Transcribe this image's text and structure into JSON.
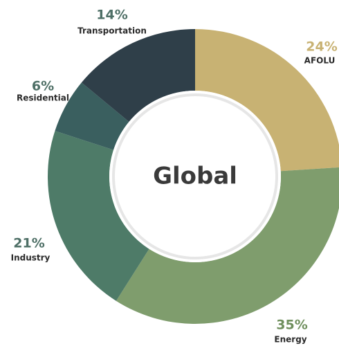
{
  "chart_data": {
    "type": "donut",
    "center_label": "Global",
    "categories": [
      "AFOLU",
      "Energy",
      "Industry",
      "Residential",
      "Transportation"
    ],
    "values": [
      24,
      35,
      21,
      6,
      14
    ],
    "value_labels": [
      "24%",
      "35%",
      "21%",
      "6%",
      "14%"
    ],
    "colors": [
      "#c8b273",
      "#7f9d6d",
      "#4e7b68",
      "#3a5f5f",
      "#2f3f49"
    ]
  }
}
